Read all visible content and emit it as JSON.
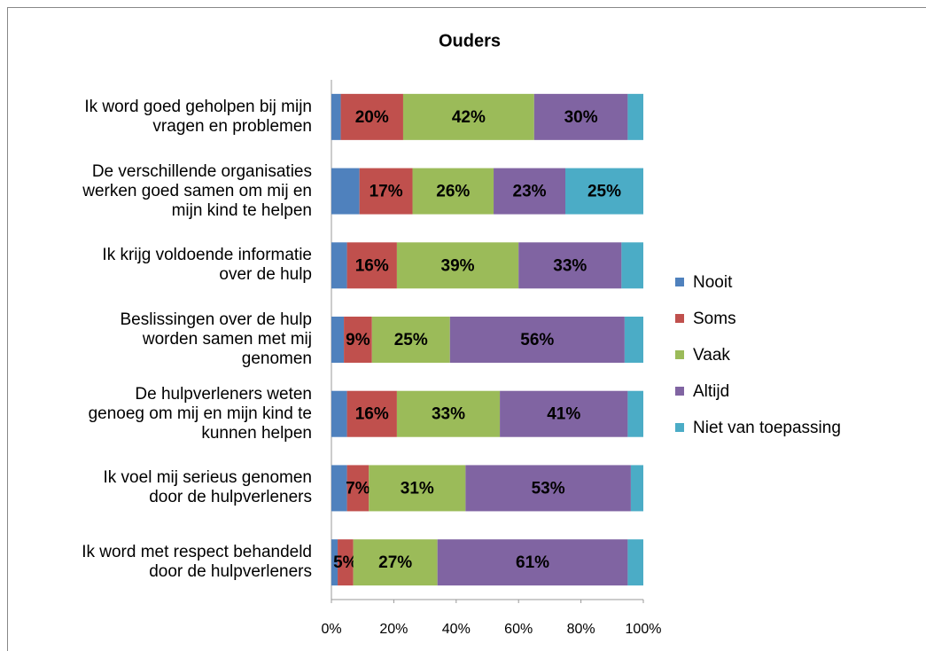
{
  "chart_data": {
    "type": "stacked_bar_horizontal",
    "title": "Ouders",
    "categories": [
      "Ik word goed geholpen bij mijn\nvragen en problemen",
      "De verschillende organisaties\nwerken goed samen om mij en\nmijn kind te helpen",
      "Ik krijg voldoende informatie\nover de hulp",
      "Beslissingen over de hulp\nworden samen met mij\ngenomen",
      "De hulpverleners weten\ngenoeg om mij en mijn kind te\nkunnen helpen",
      "Ik voel mij serieus genomen\ndoor de hulpverleners",
      "Ik word met respect behandeld\ndoor de hulpverleners"
    ],
    "series": [
      {
        "name": "Nooit",
        "color": "#4f81bd",
        "values": [
          3,
          9,
          5,
          4,
          5,
          5,
          2
        ],
        "value_labels": [
          null,
          null,
          null,
          null,
          null,
          null,
          null
        ]
      },
      {
        "name": "Soms",
        "color": "#c0504d",
        "values": [
          20,
          17,
          16,
          9,
          16,
          7,
          5
        ],
        "value_labels": [
          "20%",
          "17%",
          "16%",
          "9%",
          "16%",
          "7%",
          "5%"
        ]
      },
      {
        "name": "Vaak",
        "color": "#9bbb59",
        "values": [
          42,
          26,
          39,
          25,
          33,
          31,
          27
        ],
        "value_labels": [
          "42%",
          "26%",
          "39%",
          "25%",
          "33%",
          "31%",
          "27%"
        ]
      },
      {
        "name": "Altijd",
        "color": "#8064a2",
        "values": [
          30,
          23,
          33,
          56,
          41,
          53,
          61
        ],
        "value_labels": [
          "30%",
          "23%",
          "33%",
          "56%",
          "41%",
          "53%",
          "61%"
        ]
      },
      {
        "name": "Niet van toepassing",
        "color": "#4bacc6",
        "values": [
          5,
          25,
          7,
          6,
          5,
          4,
          5
        ],
        "value_labels": [
          null,
          "25%",
          null,
          null,
          null,
          null,
          null
        ]
      }
    ],
    "xlim": [
      0,
      100
    ],
    "xticks": [
      {
        "value": 0,
        "label": "0%"
      },
      {
        "value": 20,
        "label": "20%"
      },
      {
        "value": 40,
        "label": "40%"
      },
      {
        "value": 60,
        "label": "60%"
      },
      {
        "value": 80,
        "label": "80%"
      },
      {
        "value": 100,
        "label": "100%"
      }
    ],
    "legend": "right"
  }
}
